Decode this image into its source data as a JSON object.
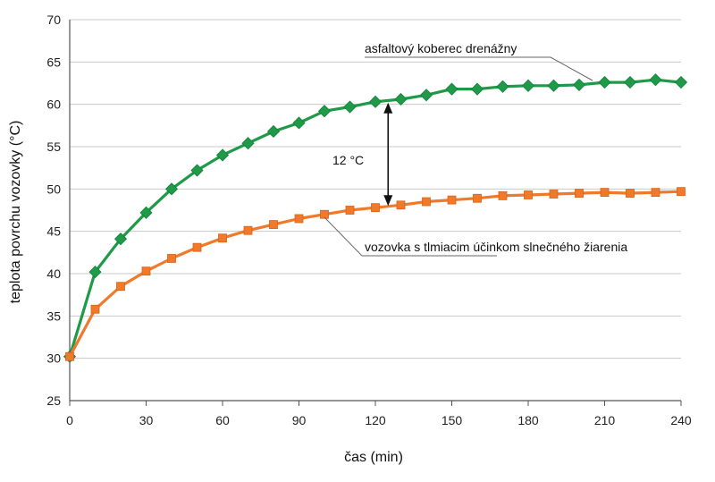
{
  "chart_data": {
    "type": "line",
    "xlabel": "čas (min)",
    "ylabel": "teplota povrchu vozovky (°C)",
    "xlim": [
      0,
      240
    ],
    "ylim": [
      25,
      70
    ],
    "xticks": [
      0,
      30,
      60,
      90,
      120,
      150,
      180,
      210,
      240
    ],
    "yticks": [
      25,
      30,
      35,
      40,
      45,
      50,
      55,
      60,
      65,
      70
    ],
    "grid": true,
    "series": [
      {
        "name": "asfaltový  koberec drenážny",
        "color": "#1e9a48",
        "marker": "diamond",
        "x": [
          0,
          10,
          20,
          30,
          40,
          50,
          60,
          70,
          80,
          90,
          100,
          110,
          120,
          130,
          140,
          150,
          160,
          170,
          180,
          190,
          200,
          210,
          220,
          230,
          240
        ],
        "y": [
          30.2,
          40.2,
          44.1,
          47.2,
          50.0,
          52.2,
          54.0,
          55.4,
          56.8,
          57.8,
          59.2,
          59.7,
          60.3,
          60.6,
          61.1,
          61.8,
          61.8,
          62.1,
          62.2,
          62.2,
          62.3,
          62.6,
          62.6,
          62.9,
          62.6
        ]
      },
      {
        "name": "vozovka s tlmiacim účinkom slnečného žiarenia",
        "color": "#f07a2a",
        "marker": "square",
        "x": [
          0,
          10,
          20,
          30,
          40,
          50,
          60,
          70,
          80,
          90,
          100,
          110,
          120,
          130,
          140,
          150,
          160,
          170,
          180,
          190,
          200,
          210,
          220,
          230,
          240
        ],
        "y": [
          30.2,
          35.8,
          38.5,
          40.3,
          41.8,
          43.1,
          44.2,
          45.1,
          45.8,
          46.5,
          47.0,
          47.5,
          47.8,
          48.1,
          48.5,
          48.7,
          48.9,
          49.2,
          49.3,
          49.4,
          49.5,
          49.6,
          49.5,
          49.6,
          49.7
        ]
      }
    ],
    "annotations": [
      {
        "text": "12 °C",
        "x": 125,
        "y_from": 48,
        "y_to": 60.2
      }
    ]
  }
}
